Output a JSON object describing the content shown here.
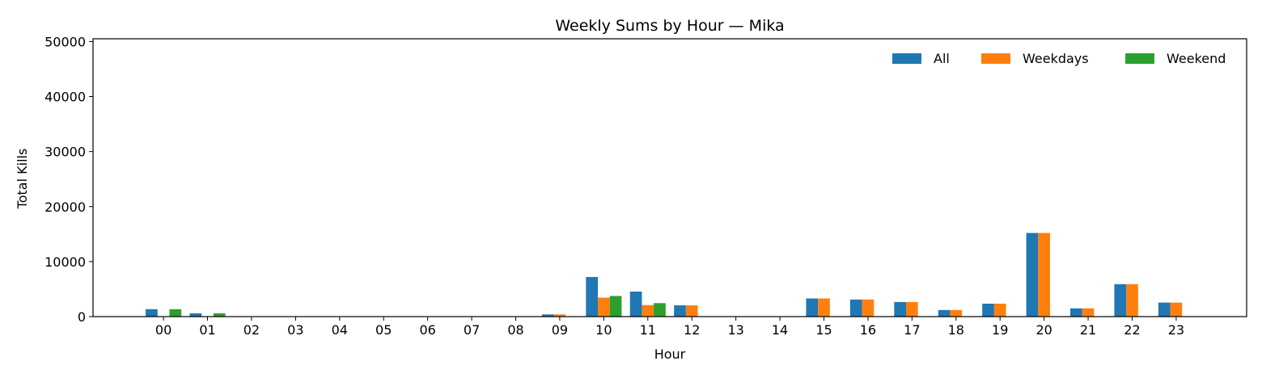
{
  "chart_data": {
    "type": "bar",
    "title": "Weekly Sums by Hour — Mika",
    "xlabel": "Hour",
    "ylabel": "Total Kills",
    "ylim": [
      0,
      50500
    ],
    "yticks": [
      0,
      10000,
      20000,
      30000,
      40000,
      50000
    ],
    "grid": false,
    "legend_position": "top-right",
    "categories": [
      "00",
      "01",
      "02",
      "03",
      "04",
      "05",
      "06",
      "07",
      "08",
      "09",
      "10",
      "11",
      "12",
      "13",
      "14",
      "15",
      "16",
      "17",
      "18",
      "19",
      "20",
      "21",
      "22",
      "23"
    ],
    "series": [
      {
        "name": "All",
        "color": "#1f77b4",
        "values": [
          1350,
          600,
          0,
          0,
          0,
          0,
          0,
          0,
          0,
          400,
          7200,
          4550,
          2050,
          0,
          0,
          3300,
          3100,
          2650,
          1200,
          2350,
          15200,
          1500,
          5900,
          2550
        ]
      },
      {
        "name": "Weekdays",
        "color": "#ff7f0e",
        "values": [
          0,
          0,
          0,
          0,
          0,
          0,
          0,
          0,
          0,
          400,
          3450,
          2100,
          2050,
          0,
          0,
          3300,
          3100,
          2650,
          1200,
          2350,
          15200,
          1500,
          5900,
          2550
        ]
      },
      {
        "name": "Weekend",
        "color": "#2ca02c",
        "values": [
          1350,
          600,
          0,
          0,
          0,
          0,
          0,
          0,
          0,
          0,
          3750,
          2450,
          0,
          0,
          0,
          0,
          0,
          0,
          0,
          0,
          0,
          0,
          0,
          0
        ]
      }
    ]
  }
}
